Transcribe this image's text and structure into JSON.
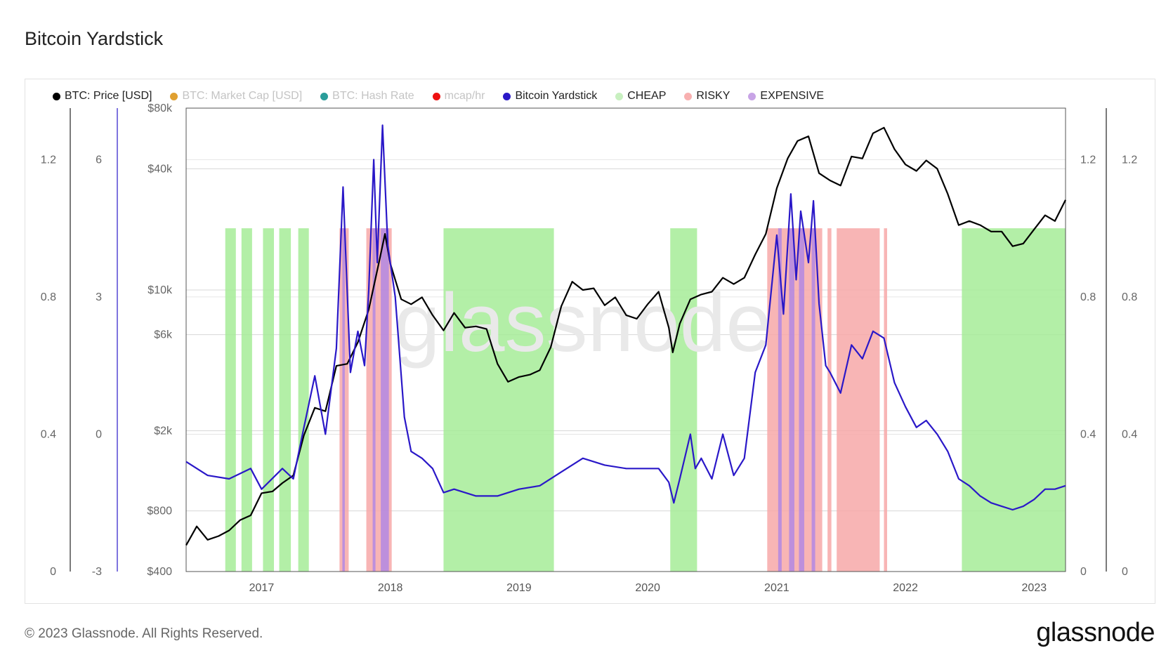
{
  "title": "Bitcoin Yardstick",
  "footer": {
    "copyright": "© 2023 Glassnode. All Rights Reserved.",
    "logo": "glassnode",
    "watermark": "glassnode"
  },
  "legend": [
    {
      "label": "BTC: Price [USD]",
      "color": "#000000",
      "dim": false
    },
    {
      "label": "BTC: Market Cap [USD]",
      "color": "#e0a030",
      "dim": true
    },
    {
      "label": "BTC: Hash Rate",
      "color": "#2a9d9a",
      "dim": true
    },
    {
      "label": "mcap/hr",
      "color": "#ee1111",
      "dim": true
    },
    {
      "label": "Bitcoin Yardstick",
      "color": "#2a18c8",
      "dim": false
    },
    {
      "label": "CHEAP",
      "color": "#c8f0c0",
      "dim": false
    },
    {
      "label": "RISKY",
      "color": "#f8b0b0",
      "dim": false
    },
    {
      "label": "EXPENSIVE",
      "color": "#c8a4e6",
      "dim": false
    }
  ],
  "chart_data": {
    "type": "line",
    "title": "Bitcoin Yardstick",
    "x_ticks": [
      "2017",
      "2018",
      "2019",
      "2020",
      "2021",
      "2022",
      "2023"
    ],
    "x_range": [
      "2016-06-01",
      "2023-03-31"
    ],
    "price_axis": {
      "scale": "log",
      "ticks": [
        "$80k",
        "$40k",
        "$10k",
        "$6k",
        "$2k",
        "$800",
        "$400"
      ],
      "tick_values": [
        80000,
        40000,
        10000,
        6000,
        2000,
        800,
        400
      ]
    },
    "yardstick_axis": {
      "ticks": [
        "1.2",
        "0.8",
        "0.4",
        "0"
      ],
      "tick_values": [
        1.2,
        0.8,
        0.4,
        0
      ],
      "range": [
        0,
        1.35
      ]
    },
    "left_axis_2": {
      "ticks": [
        "6",
        "3",
        "0",
        "-3"
      ]
    },
    "right_axis_1": {
      "ticks": [
        "1.2",
        "0.8",
        "0.4",
        "0"
      ]
    },
    "right_axis_2": {
      "ticks": [
        "1.2",
        "0.8",
        "0.4",
        "0"
      ]
    },
    "series": [
      {
        "name": "BTC: Price [USD]",
        "color": "#000000",
        "points": [
          [
            "2016-06-01",
            540
          ],
          [
            "2016-07-01",
            670
          ],
          [
            "2016-08-01",
            575
          ],
          [
            "2016-09-01",
            600
          ],
          [
            "2016-10-01",
            640
          ],
          [
            "2016-11-01",
            720
          ],
          [
            "2016-12-01",
            760
          ],
          [
            "2017-01-01",
            980
          ],
          [
            "2017-02-01",
            1000
          ],
          [
            "2017-03-01",
            1100
          ],
          [
            "2017-04-01",
            1200
          ],
          [
            "2017-05-01",
            1900
          ],
          [
            "2017-06-01",
            2600
          ],
          [
            "2017-07-01",
            2500
          ],
          [
            "2017-08-01",
            4200
          ],
          [
            "2017-09-01",
            4300
          ],
          [
            "2017-10-01",
            5500
          ],
          [
            "2017-11-01",
            8000
          ],
          [
            "2017-12-01",
            14000
          ],
          [
            "2017-12-17",
            19000
          ],
          [
            "2018-01-01",
            13500
          ],
          [
            "2018-02-01",
            9000
          ],
          [
            "2018-03-01",
            8500
          ],
          [
            "2018-04-01",
            9200
          ],
          [
            "2018-05-01",
            7500
          ],
          [
            "2018-06-01",
            6300
          ],
          [
            "2018-07-01",
            7700
          ],
          [
            "2018-08-01",
            6500
          ],
          [
            "2018-09-01",
            6600
          ],
          [
            "2018-10-01",
            6400
          ],
          [
            "2018-11-01",
            4300
          ],
          [
            "2018-12-01",
            3500
          ],
          [
            "2019-01-01",
            3700
          ],
          [
            "2019-02-01",
            3800
          ],
          [
            "2019-03-01",
            4000
          ],
          [
            "2019-04-01",
            5200
          ],
          [
            "2019-05-01",
            8300
          ],
          [
            "2019-06-01",
            11000
          ],
          [
            "2019-07-01",
            10000
          ],
          [
            "2019-08-01",
            10200
          ],
          [
            "2019-09-01",
            8400
          ],
          [
            "2019-10-01",
            9200
          ],
          [
            "2019-11-01",
            7500
          ],
          [
            "2019-12-01",
            7200
          ],
          [
            "2020-01-01",
            8500
          ],
          [
            "2020-02-01",
            9800
          ],
          [
            "2020-03-01",
            6500
          ],
          [
            "2020-03-12",
            4900
          ],
          [
            "2020-04-01",
            6800
          ],
          [
            "2020-05-01",
            9000
          ],
          [
            "2020-06-01",
            9500
          ],
          [
            "2020-07-01",
            9800
          ],
          [
            "2020-08-01",
            11500
          ],
          [
            "2020-09-01",
            10700
          ],
          [
            "2020-10-01",
            11500
          ],
          [
            "2020-11-01",
            15000
          ],
          [
            "2020-12-01",
            19000
          ],
          [
            "2021-01-01",
            32000
          ],
          [
            "2021-02-01",
            45000
          ],
          [
            "2021-03-01",
            55000
          ],
          [
            "2021-04-01",
            58000
          ],
          [
            "2021-05-01",
            38000
          ],
          [
            "2021-06-01",
            35000
          ],
          [
            "2021-07-01",
            33000
          ],
          [
            "2021-08-01",
            46000
          ],
          [
            "2021-09-01",
            45000
          ],
          [
            "2021-10-01",
            60000
          ],
          [
            "2021-11-01",
            64000
          ],
          [
            "2021-12-01",
            50000
          ],
          [
            "2022-01-01",
            42000
          ],
          [
            "2022-02-01",
            39000
          ],
          [
            "2022-03-01",
            44000
          ],
          [
            "2022-04-01",
            40000
          ],
          [
            "2022-05-01",
            30000
          ],
          [
            "2022-06-01",
            21000
          ],
          [
            "2022-07-01",
            22000
          ],
          [
            "2022-08-01",
            21000
          ],
          [
            "2022-09-01",
            19500
          ],
          [
            "2022-10-01",
            19500
          ],
          [
            "2022-11-01",
            16500
          ],
          [
            "2022-12-01",
            17000
          ],
          [
            "2023-01-01",
            20000
          ],
          [
            "2023-02-01",
            23500
          ],
          [
            "2023-03-01",
            22000
          ],
          [
            "2023-03-31",
            28000
          ]
        ]
      },
      {
        "name": "Bitcoin Yardstick",
        "color": "#2a18c8",
        "points": [
          [
            "2016-06-01",
            0.32
          ],
          [
            "2016-08-01",
            0.28
          ],
          [
            "2016-10-01",
            0.27
          ],
          [
            "2016-12-01",
            0.3
          ],
          [
            "2017-01-01",
            0.24
          ],
          [
            "2017-03-01",
            0.3
          ],
          [
            "2017-04-01",
            0.27
          ],
          [
            "2017-05-01",
            0.42
          ],
          [
            "2017-06-01",
            0.57
          ],
          [
            "2017-07-01",
            0.4
          ],
          [
            "2017-08-01",
            0.65
          ],
          [
            "2017-08-20",
            1.12
          ],
          [
            "2017-09-10",
            0.58
          ],
          [
            "2017-10-01",
            0.7
          ],
          [
            "2017-10-20",
            0.6
          ],
          [
            "2017-11-01",
            0.82
          ],
          [
            "2017-11-15",
            1.2
          ],
          [
            "2017-11-25",
            0.9
          ],
          [
            "2017-12-10",
            1.3
          ],
          [
            "2017-12-25",
            0.95
          ],
          [
            "2018-01-15",
            0.8
          ],
          [
            "2018-02-10",
            0.45
          ],
          [
            "2018-03-01",
            0.35
          ],
          [
            "2018-04-01",
            0.33
          ],
          [
            "2018-05-01",
            0.3
          ],
          [
            "2018-06-01",
            0.23
          ],
          [
            "2018-07-01",
            0.24
          ],
          [
            "2018-09-01",
            0.22
          ],
          [
            "2018-11-01",
            0.22
          ],
          [
            "2019-01-01",
            0.24
          ],
          [
            "2019-03-01",
            0.25
          ],
          [
            "2019-05-01",
            0.29
          ],
          [
            "2019-07-01",
            0.33
          ],
          [
            "2019-09-01",
            0.31
          ],
          [
            "2019-11-01",
            0.3
          ],
          [
            "2020-01-01",
            0.3
          ],
          [
            "2020-02-01",
            0.3
          ],
          [
            "2020-03-01",
            0.26
          ],
          [
            "2020-03-15",
            0.2
          ],
          [
            "2020-04-01",
            0.27
          ],
          [
            "2020-05-01",
            0.4
          ],
          [
            "2020-05-15",
            0.3
          ],
          [
            "2020-06-01",
            0.33
          ],
          [
            "2020-07-01",
            0.27
          ],
          [
            "2020-08-01",
            0.4
          ],
          [
            "2020-09-01",
            0.28
          ],
          [
            "2020-10-01",
            0.33
          ],
          [
            "2020-11-01",
            0.58
          ],
          [
            "2020-12-01",
            0.66
          ],
          [
            "2021-01-01",
            0.98
          ],
          [
            "2021-01-20",
            0.75
          ],
          [
            "2021-02-10",
            1.1
          ],
          [
            "2021-02-25",
            0.85
          ],
          [
            "2021-03-10",
            1.05
          ],
          [
            "2021-04-01",
            0.9
          ],
          [
            "2021-04-15",
            1.08
          ],
          [
            "2021-05-01",
            0.78
          ],
          [
            "2021-05-20",
            0.6
          ],
          [
            "2021-06-01",
            0.58
          ],
          [
            "2021-07-01",
            0.52
          ],
          [
            "2021-08-01",
            0.66
          ],
          [
            "2021-09-01",
            0.62
          ],
          [
            "2021-10-01",
            0.7
          ],
          [
            "2021-11-01",
            0.68
          ],
          [
            "2021-12-01",
            0.55
          ],
          [
            "2022-01-01",
            0.48
          ],
          [
            "2022-02-01",
            0.42
          ],
          [
            "2022-03-01",
            0.44
          ],
          [
            "2022-04-01",
            0.4
          ],
          [
            "2022-05-01",
            0.35
          ],
          [
            "2022-06-01",
            0.27
          ],
          [
            "2022-07-01",
            0.25
          ],
          [
            "2022-08-01",
            0.22
          ],
          [
            "2022-09-01",
            0.2
          ],
          [
            "2022-10-01",
            0.19
          ],
          [
            "2022-11-01",
            0.18
          ],
          [
            "2022-12-01",
            0.19
          ],
          [
            "2023-01-01",
            0.21
          ],
          [
            "2023-02-01",
            0.24
          ],
          [
            "2023-03-01",
            0.24
          ],
          [
            "2023-03-31",
            0.25
          ]
        ]
      }
    ],
    "zones": [
      {
        "label": "CHEAP",
        "color": "#a6ec98",
        "ranges": [
          [
            "2016-09-20",
            "2016-10-20"
          ],
          [
            "2016-11-05",
            "2016-12-05"
          ],
          [
            "2017-01-05",
            "2017-02-05"
          ],
          [
            "2017-02-20",
            "2017-03-25"
          ],
          [
            "2017-04-15",
            "2017-05-15"
          ],
          [
            "2018-06-01",
            "2019-04-10"
          ],
          [
            "2020-03-05",
            "2020-05-20"
          ],
          [
            "2022-06-10",
            "2023-03-31"
          ]
        ]
      },
      {
        "label": "RISKY",
        "color": "#f7a8a8",
        "ranges": [
          [
            "2017-08-10",
            "2017-09-05"
          ],
          [
            "2017-10-25",
            "2018-01-05"
          ],
          [
            "2020-12-05",
            "2021-05-10"
          ],
          [
            "2021-05-25",
            "2021-06-05"
          ],
          [
            "2021-06-20",
            "2021-10-20"
          ],
          [
            "2021-11-01",
            "2021-11-10"
          ]
        ]
      },
      {
        "label": "EXPENSIVE",
        "color": "#b68be0",
        "ranges": [
          [
            "2017-08-18",
            "2017-08-25"
          ],
          [
            "2017-11-12",
            "2017-11-20"
          ],
          [
            "2017-12-05",
            "2017-12-28"
          ],
          [
            "2021-01-05",
            "2021-01-15"
          ],
          [
            "2021-02-05",
            "2021-02-20"
          ],
          [
            "2021-03-05",
            "2021-03-20"
          ],
          [
            "2021-04-10",
            "2021-04-20"
          ]
        ]
      }
    ]
  }
}
